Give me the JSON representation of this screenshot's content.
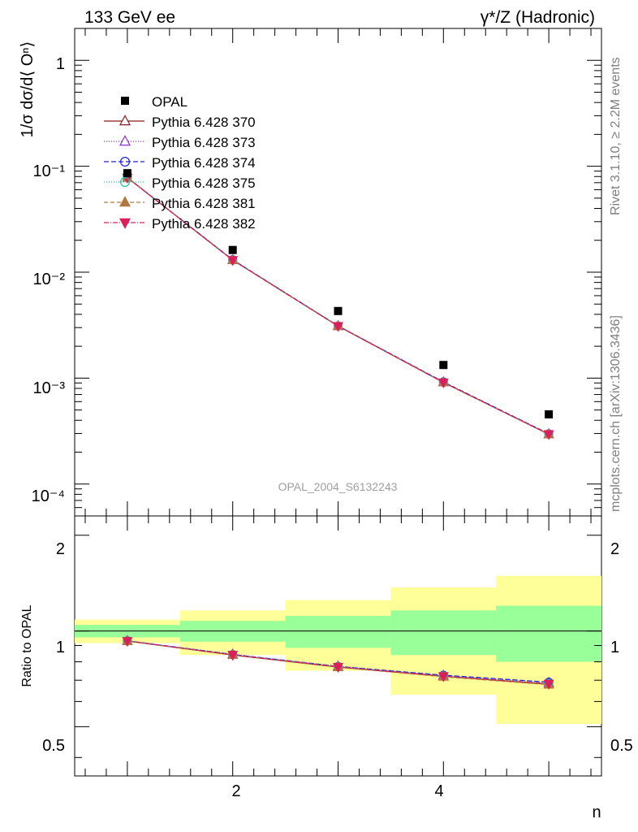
{
  "chart_data": {
    "type": "scatter",
    "title_left": "133 GeV ee",
    "title_right": "γ*/Z (Hadronic)",
    "watermark": "OPAL_2004_S6132243",
    "side_text_top": "Rivet 3.1.10, ≥ 2.2M events",
    "side_text_bottom": "mcplots.cern.ch [arXiv:1306.3436]",
    "xlabel": "n",
    "ylabel_main": "1/σ dσ/d⟨ Oⁿ⟩",
    "ylabel_ratio": "Ratio to OPAL",
    "xlim": [
      0.5,
      5.5
    ],
    "ylim_main": [
      5e-05,
      2
    ],
    "ylim_ratio": [
      0.35,
      2.3
    ],
    "x": [
      1,
      2,
      3,
      4,
      5
    ],
    "x_ticks": [
      "2",
      "4"
    ],
    "y_ticks_main": [
      "1",
      "10⁻¹",
      "10⁻²",
      "10⁻³",
      "10⁻⁴"
    ],
    "y_ticks_ratio": [
      "0.5",
      "1",
      "2"
    ],
    "data": {
      "name": "OPAL",
      "values": [
        0.086,
        0.0162,
        0.0043,
        0.00133,
        0.000455
      ]
    },
    "series": [
      {
        "name": "Pythia 6.428 370",
        "color": "#8b1a1a",
        "marker": "triangle-open",
        "dash": "",
        "values": [
          0.078,
          0.013,
          0.0031,
          0.00091,
          0.000295
        ],
        "ratio": [
          0.93,
          0.84,
          0.77,
          0.72,
          0.68
        ]
      },
      {
        "name": "Pythia 6.428 373",
        "color": "#8a2be2",
        "marker": "triangle-open",
        "dash": "1,2",
        "values": [
          0.0782,
          0.0131,
          0.00312,
          0.00092,
          0.000297
        ],
        "ratio": [
          0.932,
          0.845,
          0.775,
          0.725,
          0.688
        ]
      },
      {
        "name": "Pythia 6.428 374",
        "color": "#2020e0",
        "marker": "circle-open",
        "dash": "6,3",
        "values": [
          0.0781,
          0.0131,
          0.00311,
          0.00092,
          0.000298
        ],
        "ratio": [
          0.931,
          0.843,
          0.773,
          0.726,
          0.69
        ]
      },
      {
        "name": "Pythia 6.428 375",
        "color": "#20c0a0",
        "marker": "circle-open",
        "dash": "1,2",
        "values": [
          0.078,
          0.013,
          0.00311,
          0.00091,
          0.000296
        ],
        "ratio": [
          0.93,
          0.842,
          0.772,
          0.722,
          0.684
        ]
      },
      {
        "name": "Pythia 6.428 381",
        "color": "#b07840",
        "marker": "triangle-filled",
        "dash": "5,3",
        "values": [
          0.0779,
          0.013,
          0.00309,
          0.00091,
          0.000294
        ],
        "ratio": [
          0.929,
          0.84,
          0.769,
          0.718,
          0.678
        ]
      },
      {
        "name": "Pythia 6.428 382",
        "color": "#dc1f5a",
        "marker": "triangle-down-filled",
        "dash": "6,2,1,2",
        "values": [
          0.078,
          0.013,
          0.0031,
          0.00091,
          0.000296
        ],
        "ratio": [
          0.93,
          0.841,
          0.771,
          0.721,
          0.682
        ]
      }
    ],
    "ratio_bands": {
      "x_edges": [
        0.5,
        1.5,
        2.5,
        3.5,
        4.5,
        5.5
      ],
      "green_lo": [
        0.955,
        0.925,
        0.885,
        0.84,
        0.8
      ],
      "green_hi": [
        1.045,
        1.075,
        1.115,
        1.16,
        1.2
      ],
      "yellow_lo": [
        0.915,
        0.84,
        0.75,
        0.63,
        0.51
      ],
      "yellow_hi": [
        1.085,
        1.16,
        1.25,
        1.37,
        1.49
      ]
    }
  }
}
